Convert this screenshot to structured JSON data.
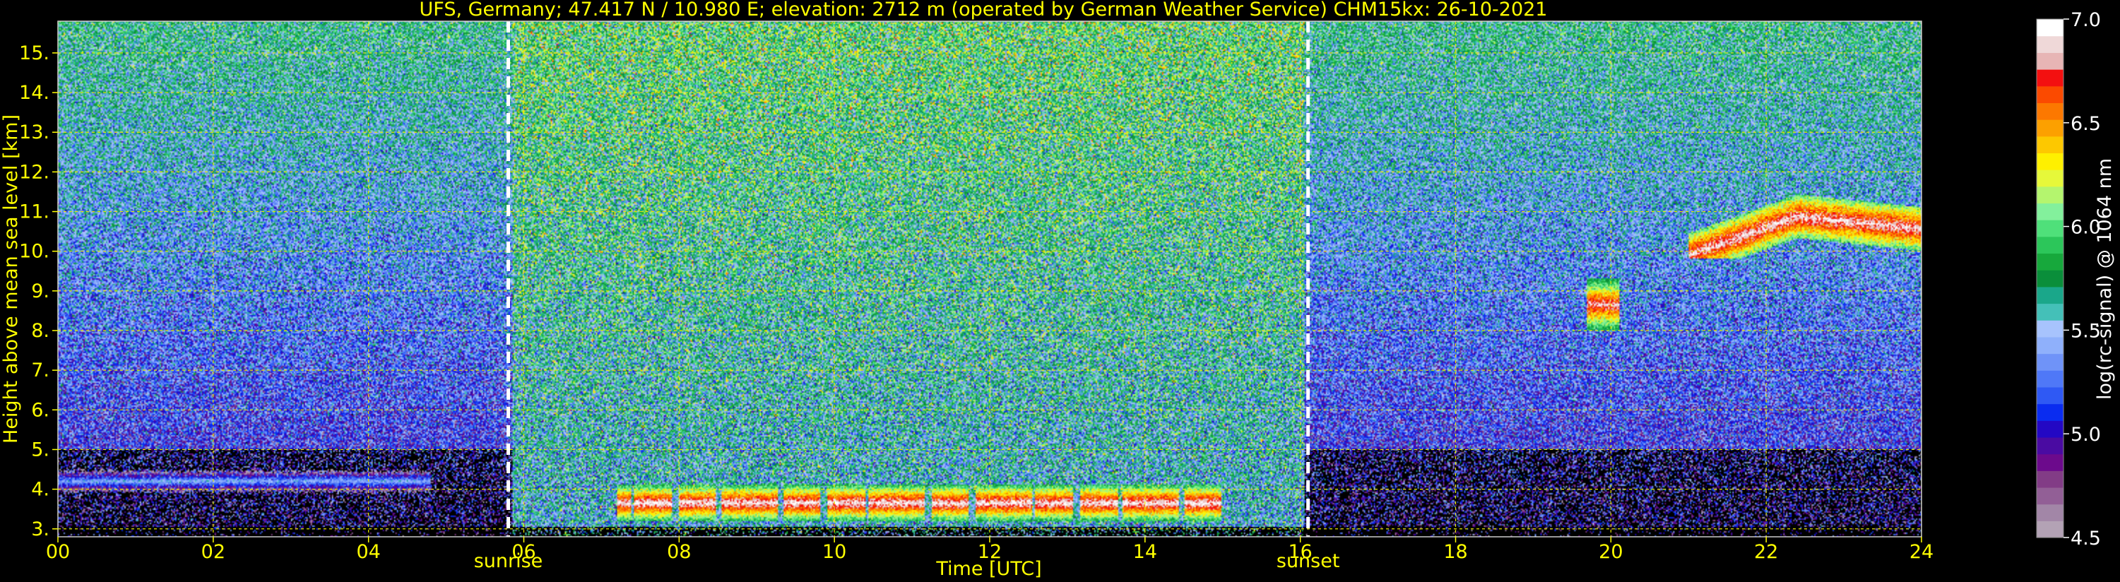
{
  "chart_data": {
    "type": "heatmap",
    "title": "UFS, Germany; 47.417 N / 10.980 E; elevation: 2712 m  (operated by German Weather Service)    CHM15kx: 26-10-2021",
    "xlabel": "Time [UTC]",
    "ylabel": "Height above mean sea level [km]",
    "xlim": [
      0,
      24
    ],
    "ylim": [
      2.8,
      15.8
    ],
    "x_ticks": [
      "00",
      "02",
      "04",
      "06",
      "08",
      "10",
      "12",
      "14",
      "16",
      "18",
      "20",
      "22",
      "24"
    ],
    "x_tick_values": [
      0,
      2,
      4,
      6,
      8,
      10,
      12,
      14,
      16,
      18,
      20,
      22,
      24
    ],
    "y_ticks": [
      "3.",
      "4.",
      "5.",
      "6.",
      "7.",
      "8.",
      "9.",
      "10.",
      "11.",
      "12.",
      "13.",
      "14.",
      "15."
    ],
    "y_tick_values": [
      3,
      4,
      5,
      6,
      7,
      8,
      9,
      10,
      11,
      12,
      13,
      14,
      15
    ],
    "grid": true,
    "colorbar": {
      "label": "log(rc-signal) @ 1064 nm",
      "range": [
        4.5,
        7.0
      ],
      "ticks": [
        "4.5",
        "5.0",
        "5.5",
        "6.0",
        "6.5",
        "7.0"
      ],
      "tick_values": [
        4.5,
        5.0,
        5.5,
        6.0,
        6.5,
        7.0
      ],
      "colors": [
        "#b3a2b5",
        "#a286a7",
        "#925f96",
        "#823c86",
        "#6c0a8c",
        "#4a0ba2",
        "#2308c4",
        "#0a2cf0",
        "#2f59f4",
        "#4f78f7",
        "#6f93f8",
        "#8fb0fb",
        "#a7c3fd",
        "#44c0b8",
        "#1aa78a",
        "#0a8e3a",
        "#17a83c",
        "#2cc65a",
        "#4fe07a",
        "#83f09c",
        "#b4f56e",
        "#e6f83a",
        "#fef000",
        "#fdc800",
        "#fca000",
        "#fc7800",
        "#fb4a00",
        "#f31010",
        "#e7b5b5",
        "#efd8d8",
        "#ffffff"
      ]
    },
    "events": [
      {
        "label": "sunrise",
        "x": 5.8
      },
      {
        "label": "sunset",
        "x": 16.1
      }
    ],
    "features": [
      {
        "name": "low cloud layer",
        "x": [
          7.2,
          15.0
        ],
        "y": [
          3.2,
          4.1
        ],
        "level": 6.5
      },
      {
        "name": "isolated cloud",
        "x": [
          19.7,
          20.1
        ],
        "y": [
          8.0,
          9.3
        ],
        "level": 6.4
      },
      {
        "name": "high cloud layer",
        "x": [
          21.0,
          24.0
        ],
        "y": [
          9.8,
          11.6
        ],
        "level": 6.6
      },
      {
        "name": "thin aerosol layer",
        "x": [
          0.0,
          4.8
        ],
        "y": [
          3.9,
          4.5
        ],
        "level": 5.0
      },
      {
        "name": "daytime background noise",
        "x": [
          5.8,
          16.1
        ],
        "y": [
          2.8,
          15.8
        ],
        "level": 5.8
      }
    ]
  }
}
